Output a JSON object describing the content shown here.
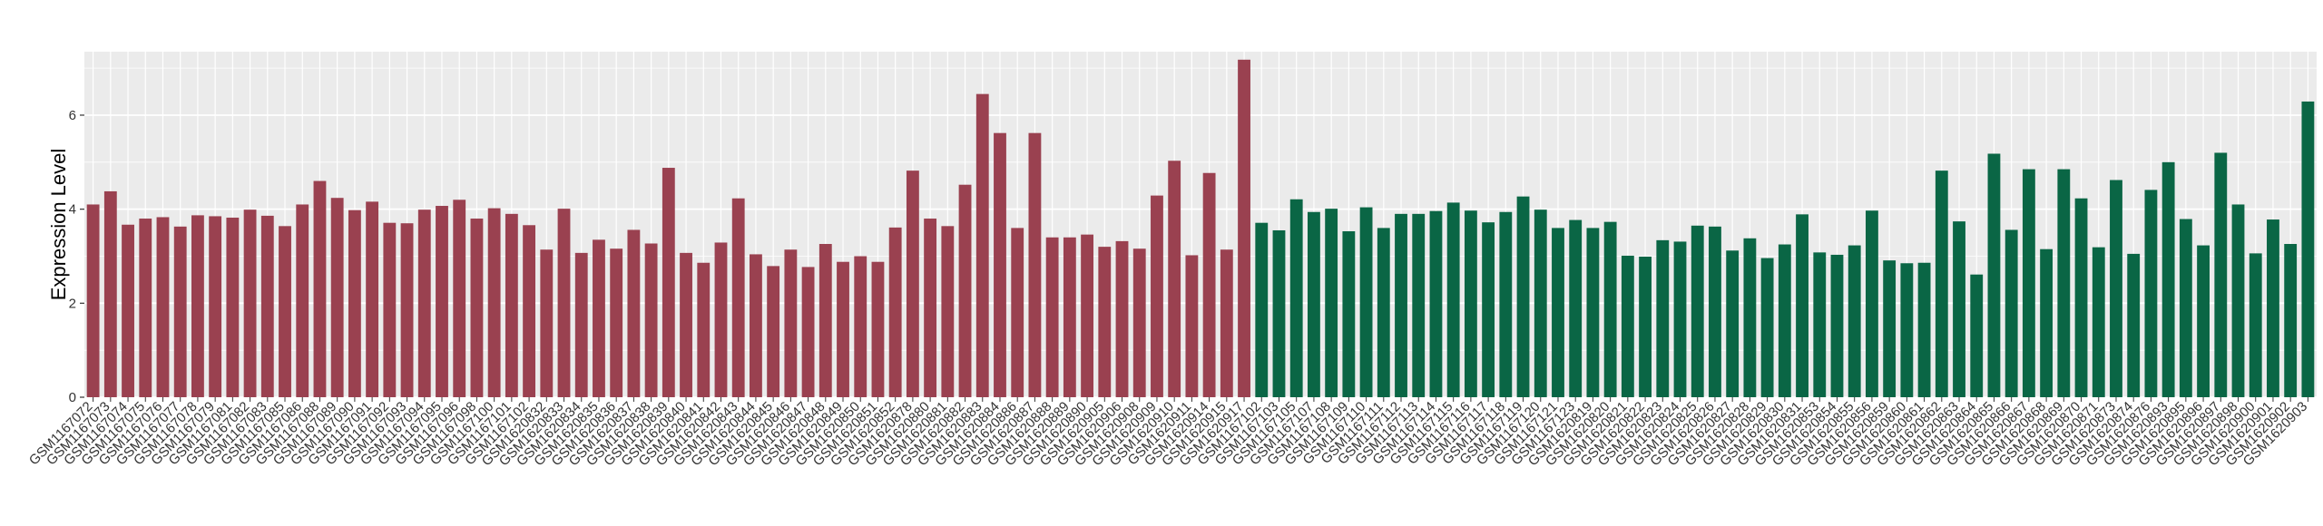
{
  "chart_data": {
    "type": "bar",
    "ylabel": "Expression Level",
    "xlabel": "",
    "ylim": [
      0,
      7.35
    ],
    "yticks": [
      0,
      2,
      4,
      6
    ],
    "grid": true,
    "legend": "none",
    "colors": {
      "group1": "#9A4150",
      "group2": "#0A6645",
      "panel": "#EBEBEB",
      "grid": "#FFFFFF"
    },
    "categories": [
      "GSM1167072",
      "GSM1167073",
      "GSM1167074",
      "GSM1167075",
      "GSM1167076",
      "GSM1167077",
      "GSM1167078",
      "GSM1167079",
      "GSM1167081",
      "GSM1167082",
      "GSM1167083",
      "GSM1167085",
      "GSM1167086",
      "GSM1167088",
      "GSM1167089",
      "GSM1167090",
      "GSM1167091",
      "GSM1167092",
      "GSM1167093",
      "GSM1167094",
      "GSM1167095",
      "GSM1167096",
      "GSM1167098",
      "GSM1167100",
      "GSM1167101",
      "GSM1167102",
      "GSM1620832",
      "GSM1620833",
      "GSM1620834",
      "GSM1620835",
      "GSM1620836",
      "GSM1620837",
      "GSM1620838",
      "GSM1620839",
      "GSM1620840",
      "GSM1620841",
      "GSM1620842",
      "GSM1620843",
      "GSM1620844",
      "GSM1620845",
      "GSM1620846",
      "GSM1620847",
      "GSM1620848",
      "GSM1620849",
      "GSM1620850",
      "GSM1620851",
      "GSM1620852",
      "GSM1620878",
      "GSM1620880",
      "GSM1620881",
      "GSM1620882",
      "GSM1620883",
      "GSM1620884",
      "GSM1620886",
      "GSM1620887",
      "GSM1620888",
      "GSM1620889",
      "GSM1620890",
      "GSM1620905",
      "GSM1620906",
      "GSM1620908",
      "GSM1620909",
      "GSM1620910",
      "GSM1620911",
      "GSM1620914",
      "GSM1620915",
      "GSM1620917",
      "GSM1167102",
      "GSM1167103",
      "GSM1167105",
      "GSM1167107",
      "GSM1167108",
      "GSM1167109",
      "GSM1167110",
      "GSM1167111",
      "GSM1167112",
      "GSM1167113",
      "GSM1167114",
      "GSM1167115",
      "GSM1167116",
      "GSM1167117",
      "GSM1167118",
      "GSM1167119",
      "GSM1167120",
      "GSM1167121",
      "GSM1167123",
      "GSM1620819",
      "GSM1620820",
      "GSM1620821",
      "GSM1620822",
      "GSM1620823",
      "GSM1620824",
      "GSM1620825",
      "GSM1620826",
      "GSM1620827",
      "GSM1620828",
      "GSM1620829",
      "GSM1620830",
      "GSM1620831",
      "GSM1620853",
      "GSM1620854",
      "GSM1620855",
      "GSM1620856",
      "GSM1620859",
      "GSM1620860",
      "GSM1620861",
      "GSM1620862",
      "GSM1620863",
      "GSM1620864",
      "GSM1620865",
      "GSM1620866",
      "GSM1620867",
      "GSM1620868",
      "GSM1620869",
      "GSM1620870",
      "GSM1620871",
      "GSM1620873",
      "GSM1620874",
      "GSM1620876",
      "GSM1620893",
      "GSM1620895",
      "GSM1620896",
      "GSM1620897",
      "GSM1620898",
      "GSM1620900",
      "GSM1620901",
      "GSM1620902",
      "GSM1620903"
    ],
    "groups": [
      1,
      1,
      1,
      1,
      1,
      1,
      1,
      1,
      1,
      1,
      1,
      1,
      1,
      1,
      1,
      1,
      1,
      1,
      1,
      1,
      1,
      1,
      1,
      1,
      1,
      1,
      1,
      1,
      1,
      1,
      1,
      1,
      1,
      1,
      1,
      1,
      1,
      1,
      1,
      1,
      1,
      1,
      1,
      1,
      1,
      1,
      1,
      1,
      1,
      1,
      1,
      1,
      1,
      1,
      1,
      1,
      1,
      1,
      1,
      1,
      1,
      1,
      1,
      1,
      1,
      1,
      1,
      2,
      2,
      2,
      2,
      2,
      2,
      2,
      2,
      2,
      2,
      2,
      2,
      2,
      2,
      2,
      2,
      2,
      2,
      2,
      2,
      2,
      2,
      2,
      2,
      2,
      2,
      2,
      2,
      2,
      2,
      2,
      2,
      2,
      2,
      2,
      2,
      2,
      2,
      2,
      2,
      2,
      2,
      2,
      2,
      2,
      2,
      2,
      2,
      2,
      2,
      2,
      2,
      2,
      2,
      2,
      2,
      2,
      2,
      2,
      2,
      2
    ],
    "values": [
      4.1,
      4.38,
      3.67,
      3.8,
      3.83,
      3.63,
      3.87,
      3.85,
      3.82,
      3.99,
      3.86,
      3.64,
      4.1,
      4.6,
      4.24,
      3.98,
      4.16,
      3.71,
      3.7,
      3.99,
      4.07,
      4.2,
      3.8,
      4.02,
      3.9,
      3.66,
      3.14,
      4.01,
      3.07,
      3.35,
      3.16,
      3.56,
      3.27,
      4.88,
      3.07,
      2.86,
      3.29,
      4.23,
      3.04,
      2.79,
      3.14,
      2.77,
      3.26,
      2.88,
      3.0,
      2.88,
      3.61,
      4.82,
      3.8,
      3.64,
      4.52,
      6.45,
      5.62,
      3.6,
      5.62,
      3.4,
      3.4,
      3.46,
      3.2,
      3.32,
      3.16,
      4.29,
      5.03,
      3.02,
      4.77,
      3.14,
      7.18,
      3.71,
      3.55,
      4.21,
      3.94,
      4.01,
      3.53,
      4.04,
      3.6,
      3.9,
      3.9,
      3.96,
      4.14,
      3.97,
      3.72,
      3.94,
      4.27,
      3.99,
      3.6,
      3.77,
      3.6,
      3.73,
      3.01,
      2.99,
      3.34,
      3.31,
      3.65,
      3.63,
      3.12,
      3.38,
      2.96,
      3.25,
      3.89,
      3.08,
      3.03,
      3.23,
      3.97,
      2.91,
      2.85,
      2.86,
      4.82,
      3.74,
      2.61,
      5.18,
      3.56,
      4.85,
      3.15,
      4.85,
      4.23,
      3.19,
      4.62,
      3.05,
      4.41,
      5.0,
      3.79,
      3.23,
      5.2,
      4.1,
      3.06,
      3.78,
      3.26,
      6.29
    ]
  }
}
